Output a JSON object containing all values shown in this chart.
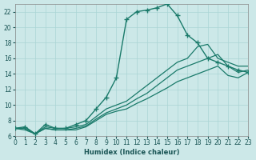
{
  "xlabel": "Humidex (Indice chaleur)",
  "bg_color": "#cce8e8",
  "grid_color": "#aad4d4",
  "line_color": "#1a7a6a",
  "xlim": [
    0,
    23
  ],
  "ylim": [
    6,
    23
  ],
  "xticks": [
    0,
    1,
    2,
    3,
    4,
    5,
    6,
    7,
    8,
    9,
    10,
    11,
    12,
    13,
    14,
    15,
    16,
    17,
    18,
    19,
    20,
    21,
    22,
    23
  ],
  "yticks": [
    6,
    8,
    10,
    12,
    14,
    16,
    18,
    20,
    22
  ],
  "lines": [
    {
      "x": [
        0,
        1,
        2,
        3,
        4,
        5,
        6,
        7,
        8,
        9,
        10,
        11,
        12,
        13,
        14,
        15,
        16,
        17,
        18,
        19,
        20,
        21,
        22,
        23
      ],
      "y": [
        7.0,
        7.2,
        6.3,
        7.5,
        7.0,
        7.0,
        7.5,
        8.0,
        9.5,
        11.0,
        13.5,
        21.0,
        22.0,
        22.2,
        22.5,
        23.0,
        21.5,
        19.0,
        18.0,
        16.0,
        15.5,
        15.0,
        14.5,
        14.2
      ],
      "marker": true,
      "lw": 1.0
    },
    {
      "x": [
        0,
        1,
        2,
        3,
        4,
        5,
        6,
        7,
        8,
        9,
        10,
        11,
        12,
        13,
        14,
        15,
        16,
        17,
        18,
        19,
        20,
        21,
        22,
        23
      ],
      "y": [
        7.0,
        7.0,
        6.3,
        7.2,
        7.0,
        7.0,
        7.2,
        7.5,
        8.5,
        9.5,
        10.0,
        10.5,
        11.5,
        12.5,
        13.5,
        14.5,
        15.5,
        16.0,
        17.5,
        17.8,
        16.0,
        15.5,
        15.0,
        15.0
      ],
      "marker": false,
      "lw": 0.9
    },
    {
      "x": [
        0,
        1,
        2,
        3,
        4,
        5,
        6,
        7,
        8,
        9,
        10,
        11,
        12,
        13,
        14,
        15,
        16,
        17,
        18,
        19,
        20,
        21,
        22,
        23
      ],
      "y": [
        7.0,
        7.0,
        6.3,
        7.0,
        6.8,
        6.8,
        7.0,
        7.3,
        8.2,
        9.0,
        9.5,
        10.0,
        10.8,
        11.5,
        12.5,
        13.5,
        14.5,
        15.0,
        15.5,
        16.0,
        16.5,
        15.0,
        14.2,
        14.5
      ],
      "marker": false,
      "lw": 0.9
    },
    {
      "x": [
        0,
        1,
        2,
        3,
        4,
        5,
        6,
        7,
        8,
        9,
        10,
        11,
        12,
        13,
        14,
        15,
        16,
        17,
        18,
        19,
        20,
        21,
        22,
        23
      ],
      "y": [
        7.0,
        6.8,
        6.3,
        7.0,
        6.8,
        6.8,
        6.8,
        7.2,
        8.0,
        8.8,
        9.2,
        9.5,
        10.2,
        10.8,
        11.5,
        12.2,
        13.0,
        13.5,
        14.0,
        14.5,
        15.0,
        13.8,
        13.5,
        14.2
      ],
      "marker": false,
      "lw": 0.9
    }
  ]
}
